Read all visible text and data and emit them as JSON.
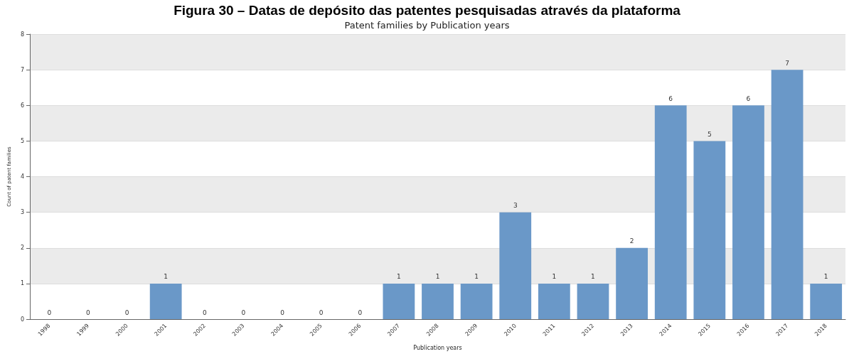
{
  "chart_data": {
    "type": "bar",
    "title": "Figura 30 – Datas de depósito das patentes pesquisadas através da plataforma",
    "subtitle": "Patent families by Publication years",
    "xlabel": "Publication years",
    "ylabel": "Count of patent families",
    "categories": [
      "1998",
      "1999",
      "2000",
      "2001",
      "2002",
      "2003",
      "2004",
      "2005",
      "2006",
      "2007",
      "2008",
      "2009",
      "2010",
      "2011",
      "2012",
      "2013",
      "2014",
      "2015",
      "2016",
      "2017",
      "2018"
    ],
    "values": [
      0,
      0,
      0,
      1,
      0,
      0,
      0,
      0,
      0,
      1,
      1,
      1,
      3,
      1,
      1,
      2,
      6,
      5,
      6,
      7,
      1
    ],
    "color": "#6a98c8",
    "ylim": [
      0,
      8
    ],
    "yticks": [
      0,
      1,
      2,
      3,
      4,
      5,
      6,
      7,
      8
    ],
    "grid": true,
    "data_labels": true
  }
}
